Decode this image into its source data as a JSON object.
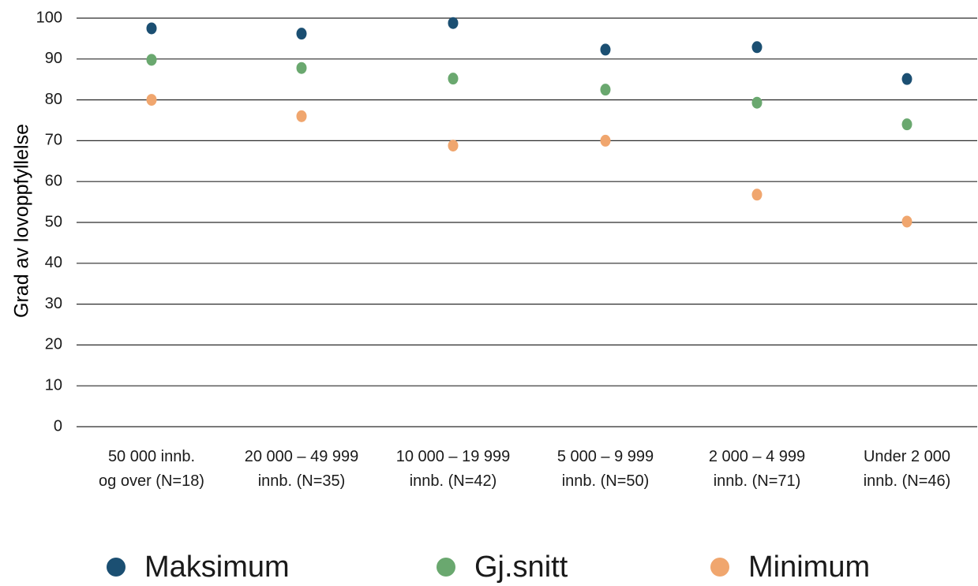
{
  "chart_data": {
    "type": "scatter",
    "title": "",
    "ylabel": "Grad av lovoppfyllelse",
    "xlabel": "",
    "ylim": [
      0,
      100
    ],
    "yticks": [
      0,
      10,
      20,
      30,
      40,
      50,
      60,
      70,
      80,
      90,
      100
    ],
    "grid": true,
    "legend_position": "bottom",
    "categories": [
      [
        "50 000 innb.",
        "og over (N=18)"
      ],
      [
        "20 000 – 49 999",
        "innb. (N=35)"
      ],
      [
        "10 000 – 19 999",
        "innb. (N=42)"
      ],
      [
        "5 000 – 9 999",
        "innb. (N=50)"
      ],
      [
        "2 000 – 4 999",
        "innb. (N=71)"
      ],
      [
        "Under 2 000",
        "innb. (N=46)"
      ]
    ],
    "series": [
      {
        "name": "Maksimum",
        "color": "#1b4f72",
        "values": [
          97.5,
          96.2,
          98.8,
          92.3,
          92.9,
          85.1
        ]
      },
      {
        "name": "Gj.snitt",
        "color": "#6aa86f",
        "values": [
          89.8,
          87.8,
          85.2,
          82.5,
          79.3,
          74.0
        ]
      },
      {
        "name": "Minimum",
        "color": "#f0a66e",
        "values": [
          80.0,
          76.0,
          68.8,
          70.0,
          56.8,
          50.2
        ]
      }
    ]
  }
}
